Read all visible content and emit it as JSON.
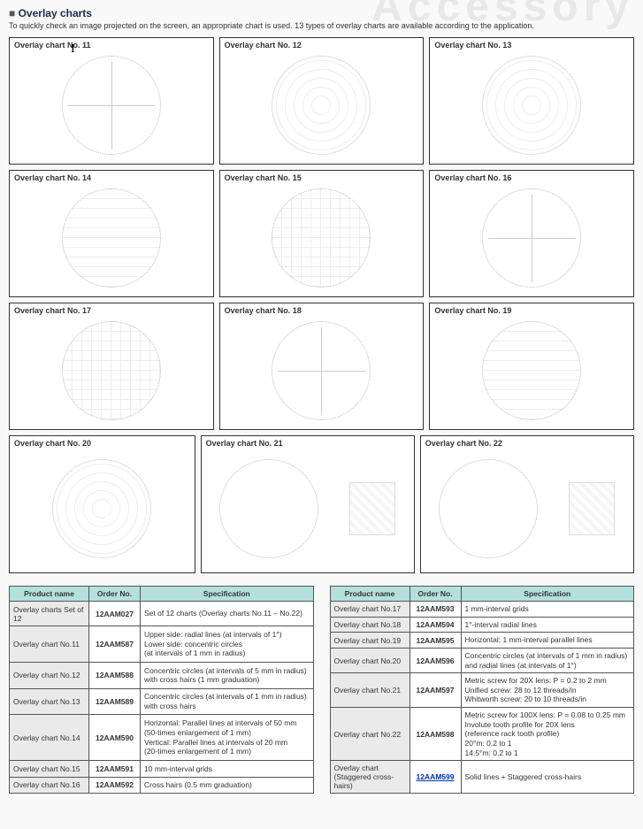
{
  "background_word": "Accessory",
  "section": {
    "title": "Overlay charts",
    "subtitle": "To quickly check an image projected on the screen, an appropriate chart is used. 13 types of overlay charts are available according to the application."
  },
  "charts": [
    {
      "label": "Overlay chart No. 11",
      "style": "cross"
    },
    {
      "label": "Overlay chart No. 12",
      "style": "rings"
    },
    {
      "label": "Overlay chart No. 13",
      "style": "rings"
    },
    {
      "label": "Overlay chart No. 14",
      "style": "hlines"
    },
    {
      "label": "Overlay chart No. 15",
      "style": "grid2"
    },
    {
      "label": "Overlay chart No. 16",
      "style": "cross"
    },
    {
      "label": "Overlay chart No. 17",
      "style": "grid2"
    },
    {
      "label": "Overlay chart No. 18",
      "style": "cross"
    },
    {
      "label": "Overlay chart No. 19",
      "style": "hlines"
    }
  ],
  "charts_bottom": [
    {
      "label": "Overlay chart No. 20",
      "style": "rings",
      "aux": false
    },
    {
      "label": "Overlay chart No. 21",
      "style": "plain",
      "aux": true
    },
    {
      "label": "Overlay chart No. 22",
      "style": "plain",
      "aux": true
    }
  ],
  "table_headers": {
    "name": "Product name",
    "order": "Order No.",
    "spec": "Specification"
  },
  "table_left": [
    {
      "name": "Overlay charts  Set of 12",
      "order": "12AAM027",
      "spec": "Set of 12 charts (Overlay charts No.11 – No.22)"
    },
    {
      "name": "Overlay chart  No.11",
      "order": "12AAM587",
      "spec": "Upper side: radial lines (at intervals of 1°)\nLower side: concentric circles\n(at intervals of 1 mm in radius)"
    },
    {
      "name": "Overlay chart  No.12",
      "order": "12AAM588",
      "spec": "Concentric circles (at intervals of 5 mm in radius) with cross hairs (1 mm graduation)"
    },
    {
      "name": "Overlay chart  No.13",
      "order": "12AAM589",
      "spec": "Concentric circles (at intervals of 1 mm in radius) with cross hairs"
    },
    {
      "name": "Overlay chart  No.14",
      "order": "12AAM590",
      "spec": "Horizontal: Parallel lines at intervals of 50 mm\n(50-times enlargement of 1 mm)\nVertical: Parallel lines at intervals of 20 mm\n(20-times enlargement of 1 mm)"
    },
    {
      "name": "Overlay chart  No.15",
      "order": "12AAM591",
      "spec": "10 mm-interval grids"
    },
    {
      "name": "Overlay chart  No.16",
      "order": "12AAM592",
      "spec": "Cross hairs (0.5 mm graduation)"
    }
  ],
  "table_right": [
    {
      "name": "Overlay chart  No.17",
      "order": "12AAM593",
      "spec": "1 mm-interval grids"
    },
    {
      "name": "Overlay chart  No.18",
      "order": "12AAM594",
      "spec": "1°-interval radial lines"
    },
    {
      "name": "Overlay chart  No.19",
      "order": "12AAM595",
      "spec": "Horizontal: 1 mm-interval parallel lines"
    },
    {
      "name": "Overlay chart  No.20",
      "order": "12AAM596",
      "spec": "Concentric circles (at intervals of 1 mm in radius) and radial lines (at intervals of 1°)"
    },
    {
      "name": "Overlay chart  No.21",
      "order": "12AAM597",
      "spec": "Metric screw for 20X lens: P = 0.2 to 2 mm\nUnified screw: 28 to 12 threads/in\nWhitworth screw: 20 to 10 threads/in"
    },
    {
      "name": "Overlay chart  No.22",
      "order": "12AAM598",
      "spec": "Metric screw for 100X lens: P = 0.08 to 0.25 mm\nInvolute tooth profile for 20X lens\n(reference rack tooth profile)\n20°m: 0.2 to 1\n14.5°m: 0.2 to 1"
    },
    {
      "name": "Overlay chart\n(Staggered cross-hairs)",
      "order": "12AAM599",
      "spec": "Solid lines + Staggered cross-hairs",
      "hot": true
    }
  ],
  "colors": {
    "header_bg": "#b4e0dd",
    "alt_bg": "#eaeaea",
    "border": "#555555",
    "bg_word": "#e8e8e8",
    "title": "#1a2a4a"
  }
}
